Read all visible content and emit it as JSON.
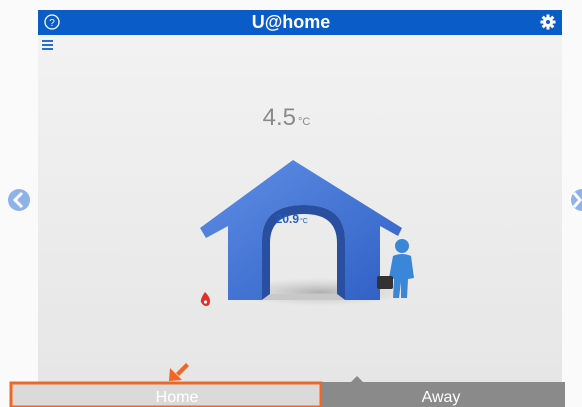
{
  "header": {
    "title": "U@home"
  },
  "outdoor_temperature": {
    "value": "4.5",
    "unit": "°C"
  },
  "indoor_temperature": {
    "value": "20.9",
    "unit": "°C"
  },
  "mode_tabs": [
    "Home",
    "Away"
  ]
}
